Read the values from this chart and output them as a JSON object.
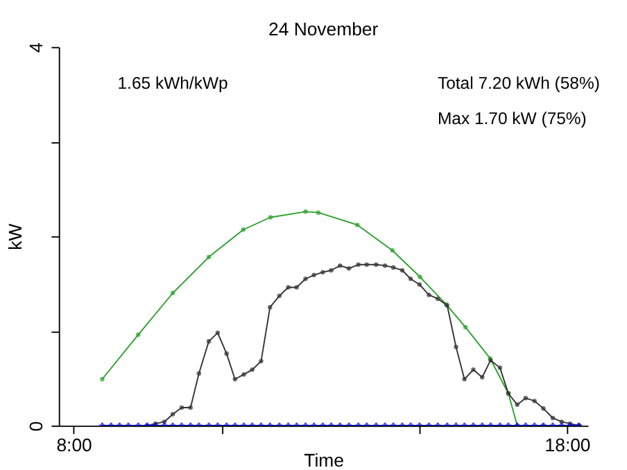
{
  "chart_data": {
    "type": "line",
    "title": "24 November",
    "xlabel": "Time",
    "ylabel": "kW",
    "annotations": [
      "1.65 kWh/kWp",
      "Total 7.20 kWh (58%)",
      "Max 1.70 kW (75%)"
    ],
    "xlim": [
      7.7,
      18.42
    ],
    "xticks": [
      {
        "value": 8,
        "label": "8:00"
      },
      {
        "value": 11,
        "label": null
      },
      {
        "value": 15,
        "label": null
      },
      {
        "value": 18,
        "label": "18:00"
      }
    ],
    "ylim": [
      0,
      4
    ],
    "yticks": [
      0,
      {
        "value": 1,
        "label": null
      },
      {
        "value": 2,
        "label": null
      },
      {
        "value": 3,
        "label": null
      },
      4
    ],
    "grid": false,
    "legend": false,
    "line_style": "solid",
    "series": [
      {
        "color": "#2ca02c",
        "marker": "circle",
        "x": [
          8.58,
          9.31,
          10.01,
          10.74,
          11.44,
          11.99,
          12.7,
          12.96,
          13.75,
          14.46,
          15.02,
          15.55,
          15.94,
          16.44,
          16.81,
          16.99,
          17.52,
          18.24
        ],
        "values": [
          0.49,
          0.96,
          1.4,
          1.78,
          2.07,
          2.2,
          2.26,
          2.25,
          2.12,
          1.85,
          1.57,
          1.28,
          1.04,
          0.71,
          0.34,
          0,
          0,
          0
        ]
      },
      {
        "color": "#333333",
        "marker": "circle",
        "x": [
          9.49,
          9.66,
          9.84,
          10.01,
          10.19,
          10.37,
          10.54,
          10.74,
          10.92,
          11.1,
          11.27,
          11.45,
          11.62,
          11.8,
          11.98,
          12.17,
          12.35,
          12.52,
          12.7,
          12.87,
          13.05,
          13.22,
          13.4,
          13.58,
          13.77,
          13.94,
          14.13,
          14.31,
          14.48,
          14.66,
          14.83,
          15.01,
          15.2,
          15.38,
          15.57,
          15.75,
          15.92,
          16.1,
          16.28,
          16.45,
          16.64,
          16.81,
          16.99,
          17.16,
          17.34,
          17.52,
          17.71,
          17.89,
          18.06,
          18.24
        ],
        "values": [
          0,
          0.02,
          0.04,
          0.12,
          0.19,
          0.19,
          0.55,
          0.89,
          0.98,
          0.76,
          0.49,
          0.54,
          0.59,
          0.68,
          1.25,
          1.37,
          1.46,
          1.46,
          1.55,
          1.59,
          1.62,
          1.64,
          1.69,
          1.66,
          1.7,
          1.7,
          1.7,
          1.69,
          1.67,
          1.64,
          1.55,
          1.49,
          1.38,
          1.34,
          1.27,
          0.83,
          0.49,
          0.59,
          0.51,
          0.69,
          0.61,
          0.34,
          0.22,
          0.29,
          0.26,
          0.18,
          0.08,
          0.04,
          0.02,
          0
        ]
      },
      {
        "color": "#0000ff",
        "marker": "cross",
        "x": [
          8.58,
          8.76,
          8.93,
          9.11,
          9.31,
          9.49,
          9.66,
          9.84,
          10.01,
          10.19,
          10.37,
          10.54,
          10.74,
          10.92,
          11.1,
          11.27,
          11.45,
          11.62,
          11.8,
          11.98,
          12.17,
          12.35,
          12.52,
          12.7,
          12.87,
          13.05,
          13.22,
          13.4,
          13.58,
          13.77,
          13.94,
          14.13,
          14.31,
          14.48,
          14.66,
          14.83,
          15.01,
          15.2,
          15.38,
          15.57,
          15.75,
          15.92,
          16.1,
          16.28,
          16.45,
          16.64,
          16.81,
          16.99,
          17.16,
          17.34,
          17.52,
          17.71,
          17.89,
          18.06,
          18.24
        ],
        "values": [
          0,
          0,
          0,
          0,
          0,
          0,
          0,
          0,
          0,
          0,
          0,
          0,
          0,
          0,
          0,
          0,
          0,
          0,
          0,
          0,
          0,
          0,
          0,
          0,
          0,
          0,
          0,
          0,
          0,
          0,
          0,
          0,
          0,
          0,
          0,
          0,
          0,
          0,
          0,
          0,
          0,
          0,
          0,
          0,
          0,
          0,
          0,
          0,
          0,
          0,
          0,
          0,
          0,
          0,
          0
        ]
      }
    ]
  }
}
